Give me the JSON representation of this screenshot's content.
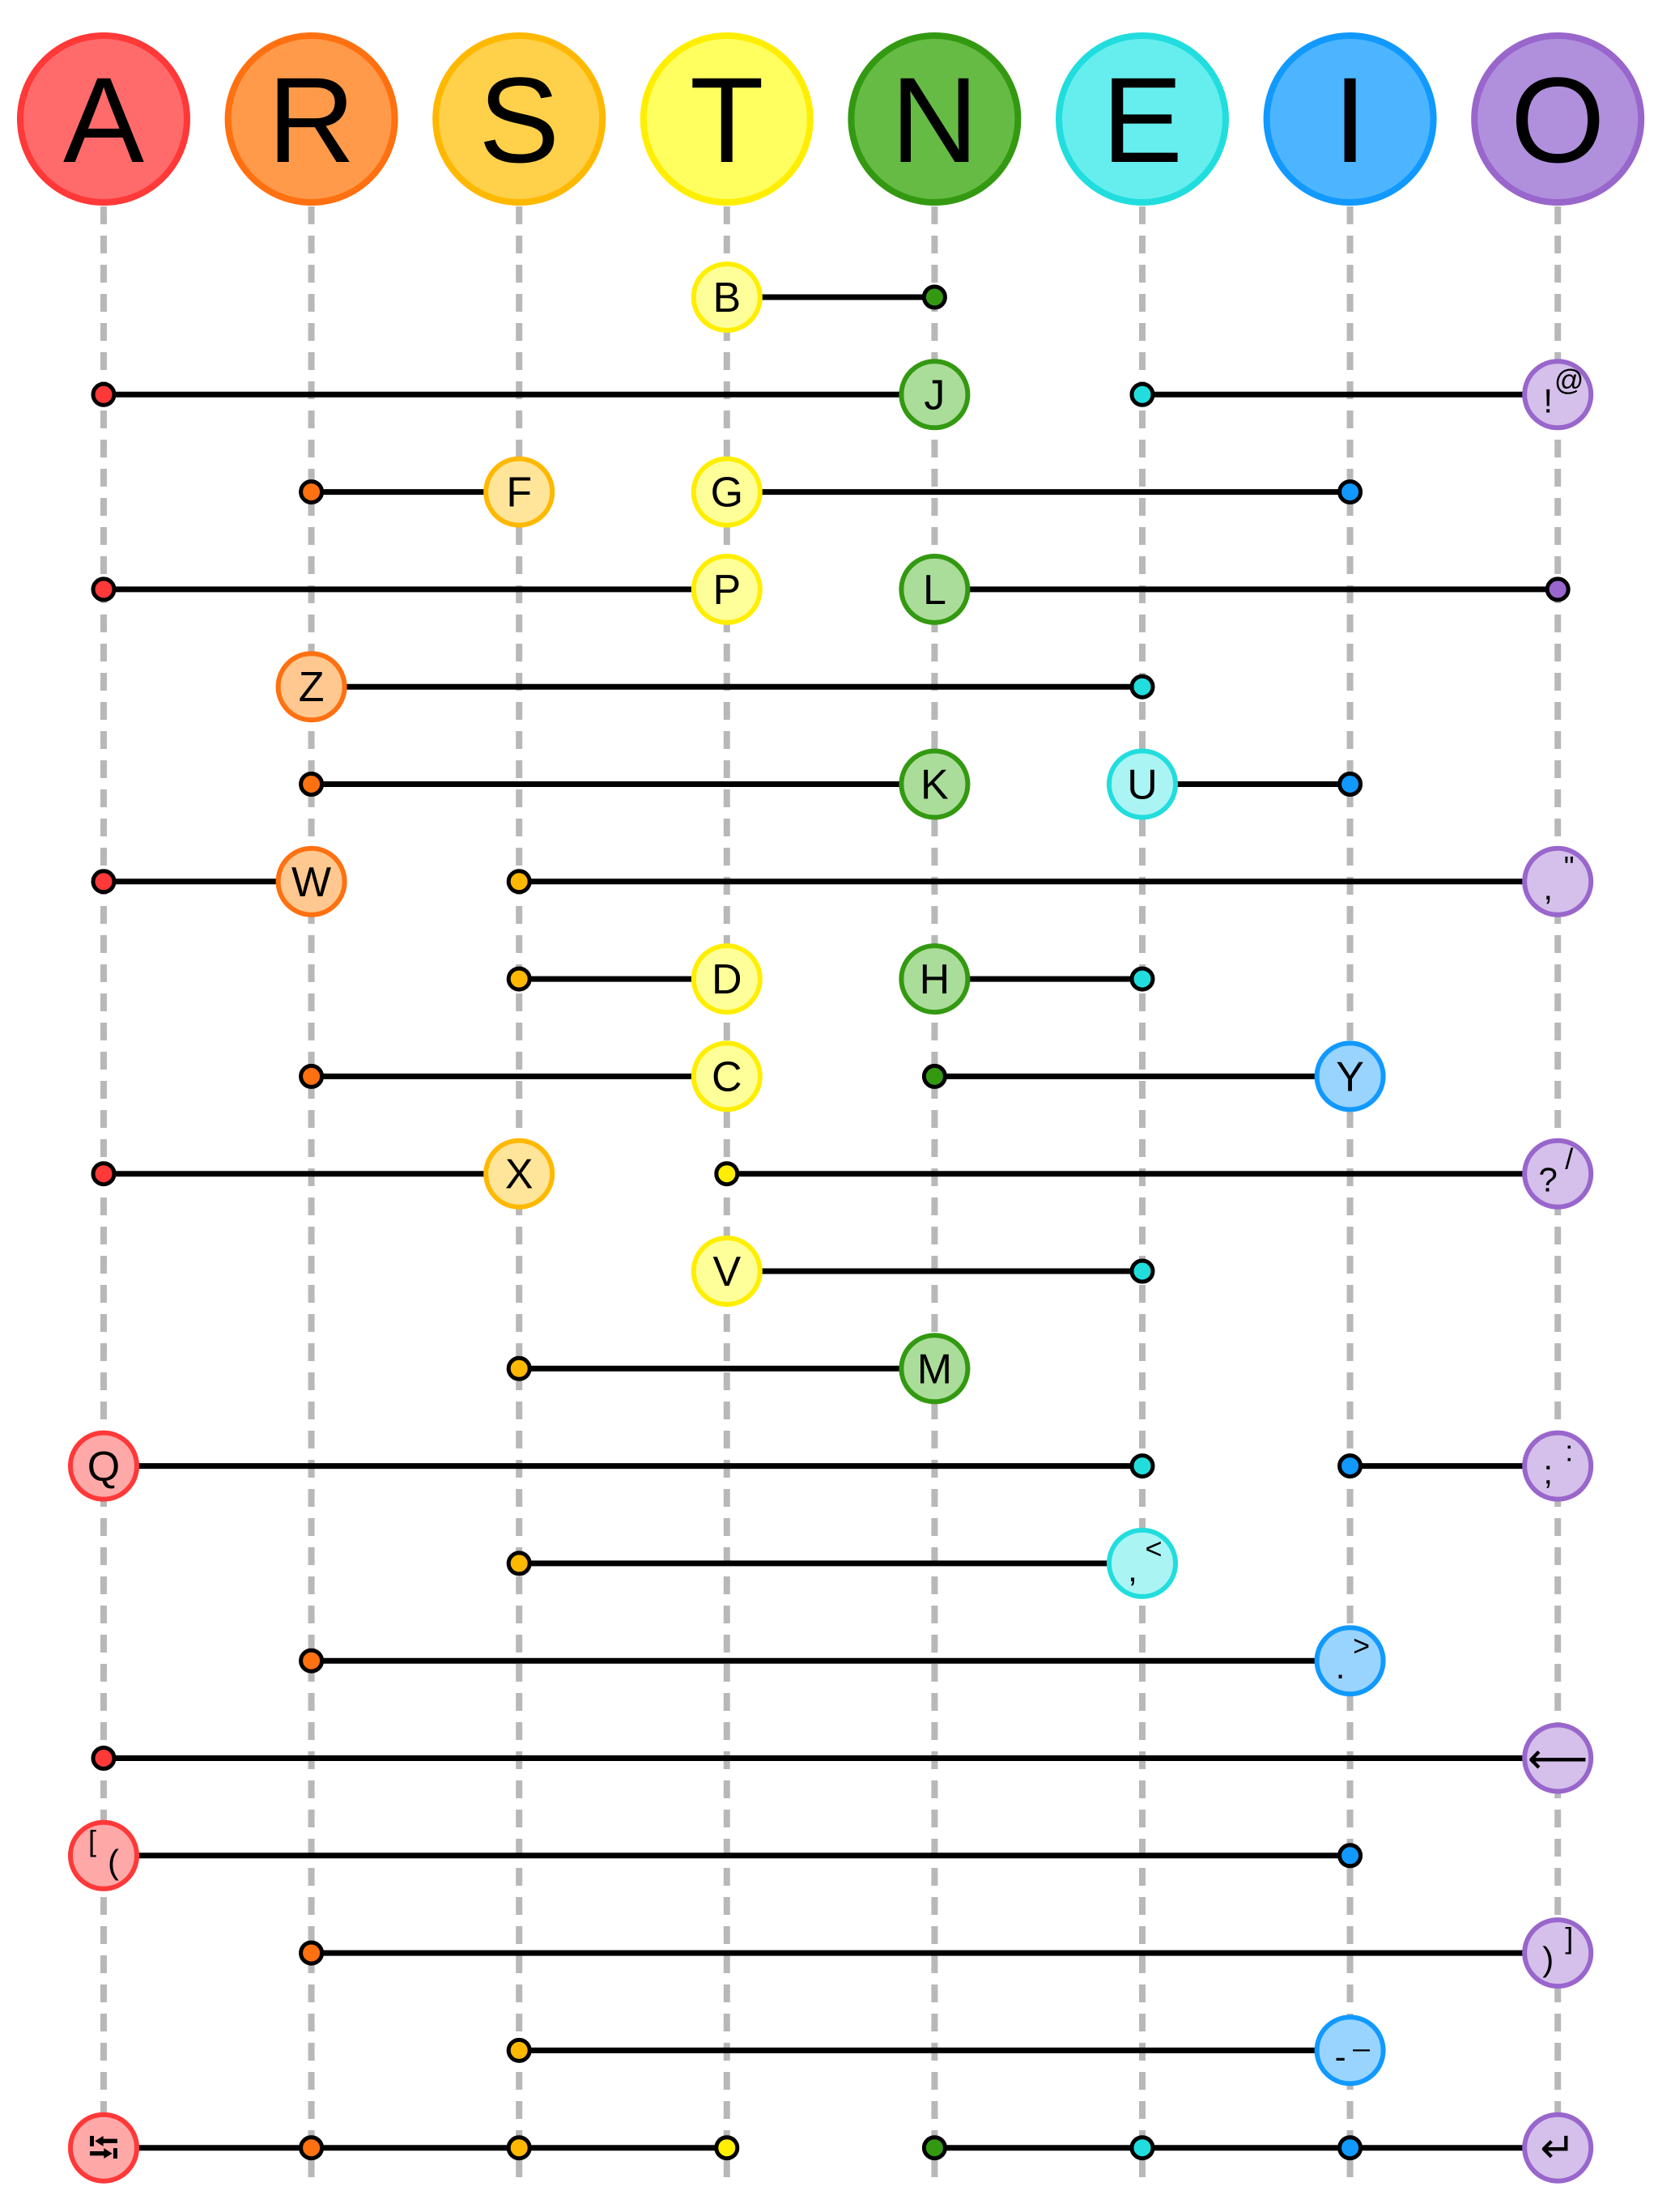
{
  "columns": [
    {
      "letter": "A",
      "color": "#ff6b6b",
      "stroke": "#ff3838",
      "light": "#ffa8a8"
    },
    {
      "letter": "R",
      "color": "#ff9a4a",
      "stroke": "#ff7010",
      "light": "#ffc890"
    },
    {
      "letter": "S",
      "color": "#ffd04a",
      "stroke": "#ffb800",
      "light": "#ffe59a"
    },
    {
      "letter": "T",
      "color": "#ffff60",
      "stroke": "#ffee00",
      "light": "#ffff99"
    },
    {
      "letter": "N",
      "color": "#66bb44",
      "stroke": "#339911",
      "light": "#aadd99"
    },
    {
      "letter": "E",
      "color": "#66eeee",
      "stroke": "#22dddd",
      "light": "#aaf4f4"
    },
    {
      "letter": "I",
      "color": "#4db5ff",
      "stroke": "#1199ff",
      "light": "#99d4ff"
    },
    {
      "letter": "O",
      "color": "#b090dd",
      "stroke": "#9966cc",
      "light": "#d4c0ea"
    }
  ],
  "rows": [
    {
      "segments": [
        [
          {
            "col": 3,
            "label": "B"
          },
          {
            "col": 4
          }
        ]
      ]
    },
    {
      "segments": [
        [
          {
            "col": 0
          },
          {
            "col": 4,
            "label": "J"
          }
        ],
        [
          {
            "col": 5
          },
          {
            "col": 7,
            "label": "!",
            "sup": "@"
          }
        ]
      ]
    },
    {
      "segments": [
        [
          {
            "col": 1
          },
          {
            "col": 2,
            "label": "F"
          }
        ],
        [
          {
            "col": 3,
            "label": "G"
          },
          {
            "col": 6
          }
        ]
      ]
    },
    {
      "segments": [
        [
          {
            "col": 0
          },
          {
            "col": 3,
            "label": "P"
          }
        ],
        [
          {
            "col": 4,
            "label": "L"
          },
          {
            "col": 7
          }
        ]
      ]
    },
    {
      "segments": [
        [
          {
            "col": 1,
            "label": "Z"
          },
          {
            "col": 5
          }
        ]
      ]
    },
    {
      "segments": [
        [
          {
            "col": 1
          },
          {
            "col": 4,
            "label": "K"
          }
        ],
        [
          {
            "col": 5,
            "label": "U"
          },
          {
            "col": 6
          }
        ]
      ]
    },
    {
      "segments": [
        [
          {
            "col": 0
          },
          {
            "col": 1,
            "label": "W"
          }
        ],
        [
          {
            "col": 2
          },
          {
            "col": 7,
            "label": ",",
            "sup": "\""
          }
        ]
      ]
    },
    {
      "segments": [
        [
          {
            "col": 2
          },
          {
            "col": 3,
            "label": "D"
          }
        ],
        [
          {
            "col": 4,
            "label": "H"
          },
          {
            "col": 5
          }
        ]
      ]
    },
    {
      "segments": [
        [
          {
            "col": 1
          },
          {
            "col": 3,
            "label": "C"
          }
        ],
        [
          {
            "col": 4
          },
          {
            "col": 6,
            "label": "Y"
          }
        ]
      ]
    },
    {
      "segments": [
        [
          {
            "col": 0
          },
          {
            "col": 2,
            "label": "X"
          }
        ],
        [
          {
            "col": 3
          },
          {
            "col": 7,
            "label": "?",
            "sup": "/"
          }
        ]
      ]
    },
    {
      "segments": [
        [
          {
            "col": 3,
            "label": "V"
          },
          {
            "col": 5
          }
        ]
      ]
    },
    {
      "segments": [
        [
          {
            "col": 2
          },
          {
            "col": 4,
            "label": "M"
          }
        ]
      ]
    },
    {
      "segments": [
        [
          {
            "col": 0,
            "label": "Q"
          },
          {
            "col": 5
          }
        ],
        [
          {
            "col": 6
          },
          {
            "col": 7,
            "label": ";",
            "sup": ":"
          }
        ]
      ]
    },
    {
      "segments": [
        [
          {
            "col": 2
          },
          {
            "col": 5,
            "label": ",",
            "sup": "<"
          }
        ]
      ]
    },
    {
      "segments": [
        [
          {
            "col": 1
          },
          {
            "col": 6,
            "label": ".",
            "sup": ">"
          }
        ]
      ]
    },
    {
      "segments": [
        [
          {
            "col": 0
          },
          {
            "col": 7,
            "label": "⟵"
          }
        ]
      ]
    },
    {
      "segments": [
        [
          {
            "col": 0,
            "label": "(",
            "sup": "["
          },
          {
            "col": 6
          }
        ]
      ]
    },
    {
      "segments": [
        [
          {
            "col": 1
          },
          {
            "col": 7,
            "label": ")",
            "sup": "]"
          }
        ]
      ]
    },
    {
      "segments": [
        [
          {
            "col": 2
          },
          {
            "col": 6,
            "label": "-",
            "sup": "_"
          }
        ]
      ]
    },
    {
      "segments": [
        [
          {
            "col": 0,
            "label": "⭾"
          },
          {
            "col": 1
          },
          {
            "col": 2
          },
          {
            "col": 3
          }
        ],
        [
          {
            "col": 4
          },
          {
            "col": 5
          },
          {
            "col": 6
          },
          {
            "col": 7,
            "label": "↵"
          }
        ]
      ]
    }
  ]
}
